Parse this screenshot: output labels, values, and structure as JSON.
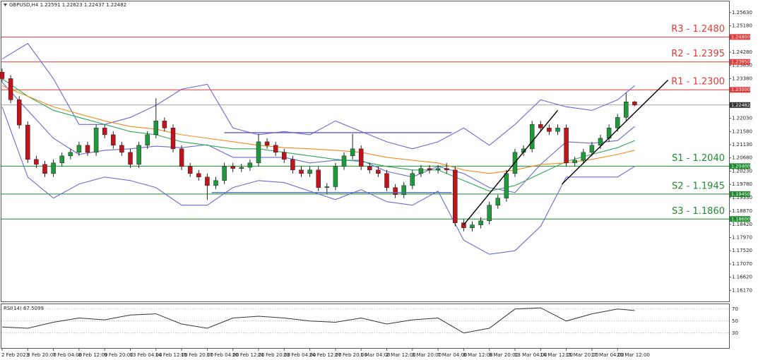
{
  "chart_data": [
    {
      "type": "candlestick",
      "title": "GBPUSD,H4  1.22591 1.22623 1.22437 1.22482",
      "categories": [
        "2 Feb 2023",
        null,
        null,
        "3 Feb 20:00",
        null,
        null,
        "7 Feb 04:00",
        null,
        null,
        "8 Feb 12:00",
        null,
        null,
        "9 Feb 20:00",
        null,
        null,
        "13 Feb 04:00",
        null,
        null,
        "14 Feb 12:00",
        null,
        null,
        "15 Feb 20:00",
        null,
        null,
        "17 Feb 04:00",
        null,
        null,
        "20 Feb 12:00",
        null,
        null,
        "21 Feb 20:00",
        null,
        null,
        "23 Feb 04:00",
        null,
        null,
        "24 Feb 12:00",
        null,
        null,
        "27 Feb 20:00",
        null,
        null,
        "1 Mar 04:00",
        null,
        null,
        "2 Mar 12:00",
        null,
        null,
        "3 Mar 20:00",
        null,
        null,
        "7 Mar 04:00",
        null,
        null,
        "8 Mar 12:00",
        null,
        null,
        "9 Mar 20:00",
        null,
        null,
        "13 Mar 04:00",
        null,
        null,
        "14 Mar 12:00",
        null,
        null,
        "15 Mar 20:00",
        null,
        null,
        "17 Mar 04:00",
        null,
        null,
        "20 Mar 12:00",
        null,
        null
      ],
      "open": [
        1.236,
        1.2338,
        1.2266,
        1.218,
        1.2063,
        1.2046,
        1.2015,
        1.2051,
        1.2075,
        1.2087,
        1.2111,
        1.2087,
        1.217,
        1.2147,
        1.2111,
        1.2087,
        1.2046,
        1.2111,
        1.2147,
        1.2194,
        1.217,
        1.2099,
        1.2039,
        1.2015,
        1.2003,
        1.1974,
        1.1991,
        1.2039,
        1.2032,
        1.2036,
        1.2051,
        1.2123,
        1.2111,
        1.2087,
        1.2063,
        1.2027,
        1.2015,
        1.2027,
        1.1967,
        1.197,
        1.2039,
        1.2075,
        1.2099,
        1.2039,
        1.2027,
        1.2015,
        1.1967,
        1.1943,
        1.1974,
        1.2015,
        1.2032,
        1.2027,
        1.2032,
        1.2027,
        1.1847,
        1.183,
        1.184,
        1.1854,
        1.1907,
        1.1931,
        1.2015,
        1.2087,
        1.2099,
        1.2182,
        1.217,
        1.2158,
        1.217,
        1.2051,
        1.206,
        1.2087,
        1.2111,
        1.2135,
        1.217,
        1.2206,
        1.2259
      ],
      "high": [
        1.2372,
        1.235,
        1.2278,
        1.2192,
        1.2075,
        1.2058,
        1.2063,
        1.2087,
        1.2099,
        1.2123,
        1.2123,
        1.2182,
        1.2182,
        1.2159,
        1.2123,
        1.2099,
        1.2123,
        1.2159,
        1.2271,
        1.2206,
        1.2182,
        1.2111,
        1.2051,
        1.2027,
        1.2015,
        1.2003,
        1.2051,
        1.2051,
        1.2048,
        1.2063,
        1.215,
        1.2135,
        1.2123,
        1.2099,
        1.2075,
        1.2039,
        1.2039,
        1.2039,
        1.1982,
        1.2051,
        1.2087,
        1.215,
        1.2111,
        1.2051,
        1.2039,
        1.2027,
        1.1979,
        1.1986,
        1.2027,
        1.2044,
        1.2044,
        1.2044,
        1.2051,
        1.2039,
        1.1859,
        1.1852,
        1.1866,
        1.1919,
        1.1943,
        1.2027,
        1.2099,
        1.2111,
        1.2194,
        1.2194,
        1.2182,
        1.2182,
        1.2182,
        1.2072,
        1.2099,
        1.2123,
        1.2147,
        1.2182,
        1.2218,
        1.229,
        1.2262
      ],
      "low": [
        1.2326,
        1.2254,
        1.2168,
        1.2051,
        1.2034,
        1.2003,
        1.2003,
        1.2039,
        1.2063,
        1.2075,
        1.2075,
        1.2075,
        1.2135,
        1.2099,
        1.2075,
        1.2034,
        1.2034,
        1.2099,
        1.2135,
        1.2158,
        1.2087,
        1.2027,
        1.2003,
        1.1991,
        1.1925,
        1.1962,
        1.1979,
        1.202,
        1.202,
        1.2024,
        1.2039,
        1.2099,
        1.2075,
        1.2051,
        1.2015,
        1.2003,
        1.2003,
        1.1955,
        1.1945,
        1.1958,
        1.2027,
        1.2063,
        1.2027,
        1.2015,
        1.2003,
        1.1955,
        1.1931,
        1.1931,
        1.1962,
        1.2003,
        1.2015,
        1.2015,
        1.2015,
        1.1835,
        1.1818,
        1.1818,
        1.1828,
        1.1842,
        1.1895,
        1.1919,
        1.2003,
        1.2075,
        1.2087,
        1.2158,
        1.2146,
        1.2146,
        1.2039,
        1.2039,
        1.2048,
        1.2075,
        1.2099,
        1.2123,
        1.2158,
        1.2194,
        1.2244
      ],
      "close": [
        1.2338,
        1.2266,
        1.218,
        1.2063,
        1.2046,
        1.2015,
        1.2051,
        1.2075,
        1.2087,
        1.2111,
        1.2087,
        1.217,
        1.2147,
        1.2111,
        1.2087,
        1.2046,
        1.2111,
        1.2147,
        1.2194,
        1.217,
        1.2099,
        1.2039,
        1.2015,
        1.2003,
        1.1974,
        1.1991,
        1.2039,
        1.2032,
        1.2036,
        1.2051,
        1.2123,
        1.2111,
        1.2087,
        1.2063,
        1.2027,
        1.2015,
        1.2027,
        1.1967,
        1.197,
        1.2039,
        1.2075,
        1.2099,
        1.2039,
        1.2027,
        1.2015,
        1.1967,
        1.1943,
        1.1974,
        1.2015,
        1.2032,
        1.2027,
        1.2032,
        1.2027,
        1.1847,
        1.183,
        1.184,
        1.1854,
        1.1907,
        1.1931,
        1.2015,
        1.2087,
        1.2099,
        1.2182,
        1.217,
        1.2158,
        1.217,
        1.2051,
        1.206,
        1.2087,
        1.2111,
        1.2135,
        1.217,
        1.2206,
        1.2259,
        1.2248
      ],
      "up_color": "#1e9a3c",
      "down_color": "#c0141c",
      "ylim": [
        1.1577,
        1.2601
      ],
      "yticks": [
        {
          "value": 1.2563,
          "label": "1.25630"
        },
        {
          "value": 1.2518,
          "label": "1.25180"
        },
        {
          "value": 1.2428,
          "label": "1.24280"
        },
        {
          "value": 1.2383,
          "label": "1.23830"
        },
        {
          "value": 1.2338,
          "label": "1.23380"
        },
        {
          "value": 1.2203,
          "label": "1.22030"
        },
        {
          "value": 1.2158,
          "label": "1.21580"
        },
        {
          "value": 1.2113,
          "label": "1.21130"
        },
        {
          "value": 1.2068,
          "label": "1.20680"
        },
        {
          "value": 1.2023,
          "label": "1.20230"
        },
        {
          "value": 1.1978,
          "label": "1.19780"
        },
        {
          "value": 1.1933,
          "label": "1.19330"
        },
        {
          "value": 1.1887,
          "label": "1.18870"
        },
        {
          "value": 1.1842,
          "label": "1.18420"
        },
        {
          "value": 1.1797,
          "label": "1.17970"
        },
        {
          "value": 1.1752,
          "label": "1.17520"
        },
        {
          "value": 1.1707,
          "label": "1.17070"
        },
        {
          "value": 1.1662,
          "label": "1.16620"
        },
        {
          "value": 1.1617,
          "label": "1.16170"
        }
      ],
      "current": {
        "value": 1.22482,
        "label": "1.22482"
      },
      "levels": [
        {
          "name": "R3 - 1.2480",
          "value": 1.248,
          "tag": "1.24800",
          "color": "#e03a3a"
        },
        {
          "name": "R2 - 1.2395",
          "value": 1.2395,
          "tag": "1.23950",
          "color": "#e03a3a"
        },
        {
          "name": "R1 - 1.2300",
          "value": 1.23,
          "tag": "1.23000",
          "color": "#e03a3a"
        },
        {
          "name": "S1 - 1.2040",
          "value": 1.204,
          "tag": "1.20400",
          "color": "#1f8a2e"
        },
        {
          "name": "S2 - 1.1945",
          "value": 1.1945,
          "tag": "1.19450",
          "color": "#1f8a2e"
        },
        {
          "name": "S3 - 1.1860",
          "value": 1.186,
          "tag": "1.18600",
          "color": "#1f8a2e"
        }
      ],
      "lines": [
        {
          "color": "#6a6ad2",
          "x": [
            0,
            3,
            6,
            9,
            12,
            15,
            18,
            21,
            24,
            27,
            30,
            33,
            36,
            39,
            42,
            45,
            48,
            51,
            54,
            57,
            60,
            63,
            66,
            69,
            72,
            74
          ],
          "values": [
            1.2405,
            1.2458,
            1.2338,
            1.2182,
            1.2182,
            1.2206,
            1.2247,
            1.2302,
            1.2319,
            1.217,
            1.2147,
            1.2158,
            1.2147,
            1.2194,
            1.2158,
            1.2123,
            1.2099,
            1.2123,
            1.217,
            1.2111,
            1.2182,
            1.2266,
            1.2242,
            1.223,
            1.2266,
            1.2314
          ]
        },
        {
          "color": "#6a6ad2",
          "x": [
            0,
            3,
            6,
            9,
            12,
            15,
            18,
            21,
            24,
            27,
            30,
            33,
            36,
            39,
            42,
            45,
            48,
            51,
            54,
            57,
            60,
            63,
            66,
            69,
            72,
            74
          ],
          "values": [
            1.2326,
            1.223,
            1.2135,
            1.208,
            1.2094,
            1.2099,
            1.2108,
            1.2103,
            1.2113,
            1.207,
            1.207,
            1.207,
            1.2051,
            1.206,
            1.206,
            1.2022,
            1.2003,
            1.2039,
            1.2015,
            1.1967,
            1.195,
            1.2046,
            1.2123,
            1.2118,
            1.2127,
            1.2175
          ]
        },
        {
          "color": "#6a6ad2",
          "x": [
            0,
            3,
            6,
            9,
            12,
            15,
            18,
            21,
            24,
            27,
            30,
            33,
            36,
            39,
            42,
            45,
            48,
            51,
            54,
            57,
            60,
            63,
            66,
            69,
            72,
            74
          ],
          "values": [
            1.2242,
            1.2003,
            1.1931,
            1.1979,
            1.2003,
            1.1991,
            1.1967,
            1.1907,
            1.1907,
            1.1967,
            1.1991,
            1.1984,
            1.1955,
            1.1926,
            1.196,
            1.1919,
            1.1907,
            1.1955,
            1.1788,
            1.174,
            1.1752,
            1.1835,
            1.2003,
            1.2003,
            1.2003,
            1.2039
          ]
        },
        {
          "color": "#2fa85a",
          "x": [
            0,
            3,
            6,
            9,
            12,
            15,
            18,
            21,
            24,
            27,
            30,
            33,
            36,
            39,
            42,
            45,
            48,
            51,
            54,
            57,
            60,
            63,
            66,
            69,
            72,
            74
          ],
          "values": [
            1.2338,
            1.2278,
            1.223,
            1.2206,
            1.2182,
            1.2158,
            1.2147,
            1.2123,
            1.2111,
            1.2099,
            1.2099,
            1.2087,
            1.2075,
            1.2063,
            1.2056,
            1.2039,
            1.2027,
            1.2027,
            1.1991,
            1.1955,
            1.1974,
            1.2015,
            1.2056,
            1.208,
            1.2103,
            1.2127
          ]
        },
        {
          "color": "#f08a1c",
          "x": [
            0,
            3,
            6,
            9,
            12,
            15,
            18,
            21,
            24,
            27,
            30,
            33,
            36,
            39,
            42,
            45,
            48,
            51,
            54,
            57,
            60,
            63,
            66,
            69,
            72,
            74
          ],
          "values": [
            1.2314,
            1.2278,
            1.2242,
            1.2218,
            1.2194,
            1.2175,
            1.2166,
            1.2147,
            1.2135,
            1.2123,
            1.2111,
            1.2103,
            1.2099,
            1.2094,
            1.2087,
            1.207,
            1.206,
            1.2051,
            1.2027,
            1.2015,
            1.2027,
            1.2046,
            1.2051,
            1.2063,
            1.208,
            1.2094
          ]
        }
      ],
      "drawings": [
        {
          "color": "#5a5ad0",
          "x": [
            26,
            52.6
          ],
          "values": [
            1.2154,
            1.2154
          ]
        },
        {
          "color": "#4a6fb0",
          "x": [
            24.5,
            52.6
          ],
          "values": [
            1.195,
            1.195
          ]
        },
        {
          "color": "#000000",
          "x": [
            54,
            65
          ],
          "values": [
            1.184,
            1.223
          ]
        },
        {
          "color": "#000000",
          "x": [
            65.5,
            77.9
          ],
          "values": [
            1.1979,
            1.2333
          ]
        }
      ]
    },
    {
      "type": "line",
      "title": "RSI(14) 67.5099",
      "color": "#333333",
      "x": [
        0,
        3,
        6,
        9,
        12,
        15,
        18,
        21,
        24,
        27,
        30,
        33,
        36,
        39,
        42,
        45,
        48,
        51,
        54,
        57,
        60,
        63,
        66,
        69,
        72,
        74
      ],
      "values": [
        40,
        38,
        48,
        55,
        52,
        60,
        62,
        45,
        38,
        55,
        58,
        55,
        50,
        48,
        55,
        45,
        52,
        55,
        30,
        38,
        70,
        72,
        50,
        62,
        70,
        67.5
      ],
      "ylim": [
        5,
        78
      ],
      "yticks": [
        70,
        50,
        30
      ]
    }
  ]
}
